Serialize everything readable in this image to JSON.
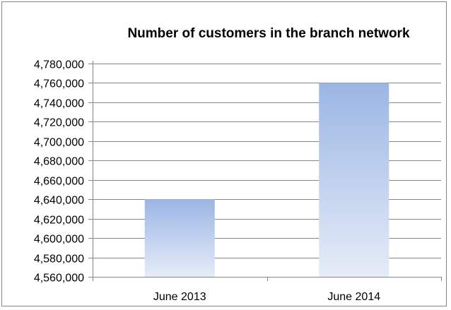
{
  "chart_data": {
    "type": "bar",
    "title": "Number of customers in the branch network",
    "xlabel": "",
    "ylabel": "",
    "categories": [
      "June 2013",
      "June 2014"
    ],
    "values": [
      4640000,
      4760000
    ],
    "ylim": [
      4560000,
      4780000
    ],
    "yticks": [
      4560000,
      4580000,
      4600000,
      4620000,
      4640000,
      4660000,
      4680000,
      4700000,
      4720000,
      4740000,
      4760000,
      4780000
    ],
    "ytick_labels": [
      "4,560,000",
      "4,580,000",
      "4,600,000",
      "4,620,000",
      "4,640,000",
      "4,660,000",
      "4,680,000",
      "4,700,000",
      "4,720,000",
      "4,740,000",
      "4,760,000",
      "4,780,000"
    ],
    "grid": true,
    "legend": "none",
    "colors": {
      "bar_top": "#9bb6e4",
      "bar_bottom": "#e6ecf8",
      "grid": "#878787",
      "axis": "#868686"
    }
  }
}
